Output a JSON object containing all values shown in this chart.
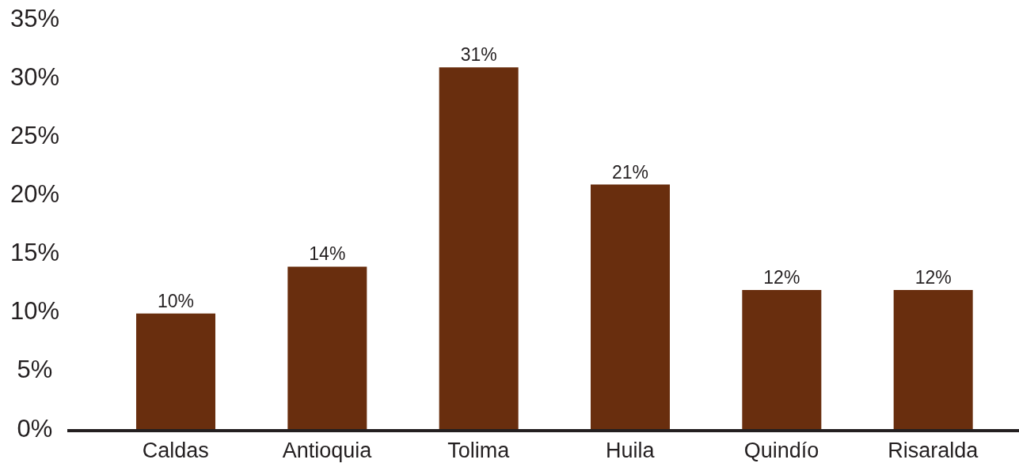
{
  "chart_data": {
    "type": "bar",
    "categories": [
      "Caldas",
      "Antioquia",
      "Tolima",
      "Huila",
      "Quindío",
      "Risaralda"
    ],
    "values": [
      10,
      14,
      31,
      21,
      12,
      12
    ],
    "value_labels": [
      "10%",
      "14%",
      "31%",
      "21%",
      "12%",
      "12%"
    ],
    "color": "#692e0e",
    "ylim": [
      0,
      35
    ],
    "yticks": [
      {
        "value": 0,
        "label": "0%"
      },
      {
        "value": 5,
        "label": "5%"
      },
      {
        "value": 10,
        "label": "10%"
      },
      {
        "value": 15,
        "label": "15%"
      },
      {
        "value": 20,
        "label": "20%"
      },
      {
        "value": 25,
        "label": "25%"
      },
      {
        "value": 30,
        "label": "30%"
      },
      {
        "value": 35,
        "label": "35%"
      }
    ],
    "grid": false
  }
}
